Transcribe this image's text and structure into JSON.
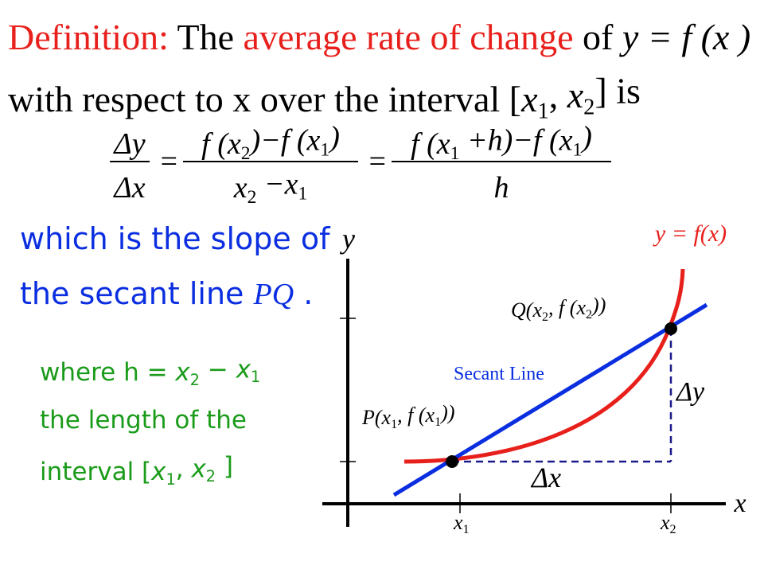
{
  "definition": {
    "label": "Definition:",
    "text1": "The",
    "highlight": "average rate of change",
    "text2": "of",
    "function": "y = f (x )",
    "line2": [
      "with respect to ",
      "x",
      " over the interval [",
      {
        "base": "x",
        "sub": "1"
      },
      ", ",
      {
        "base": "x",
        "sub": "2"
      },
      "] is"
    ]
  },
  "formula": {
    "frac1": {
      "num": [
        "Δy"
      ],
      "den": [
        "Δx"
      ]
    },
    "equals": [
      "=",
      "="
    ],
    "frac2": {
      "num": [
        "f (",
        {
          "base": "x",
          "sub": "2"
        },
        ")−f (",
        {
          "base": "x",
          "sub": "1"
        },
        ")"
      ],
      "den": [
        {
          "base": "x",
          "sub": "2"
        },
        " −",
        {
          "base": "x",
          "sub": "1"
        }
      ]
    },
    "frac3": {
      "num": [
        "f (",
        {
          "base": "x",
          "sub": "1"
        },
        " +h)−f (",
        {
          "base": "x",
          "sub": "1"
        },
        ")"
      ],
      "den": [
        "h"
      ]
    }
  },
  "slope": {
    "line1": "which is the slope of",
    "line2": [
      "the secant line ",
      "PQ",
      " ."
    ]
  },
  "where": {
    "line1": [
      "where ",
      "h",
      " = ",
      {
        "base": "x",
        "sub": "2"
      },
      " − ",
      {
        "base": "x",
        "sub": "1"
      }
    ],
    "line2": "the length of the",
    "line3": [
      "interval [",
      {
        "base": "x",
        "sub": "1"
      },
      ", ",
      {
        "base": "x",
        "sub": "2"
      },
      " ]"
    ]
  },
  "graph": {
    "curve_label": "y = f(x)",
    "y_axis": "y",
    "x_axis": "x",
    "q_label": [
      "Q(",
      {
        "base": "x",
        "sub": "2"
      },
      ", f (",
      {
        "base": "x",
        "sub": "2"
      },
      "))"
    ],
    "p_label": [
      "P(",
      {
        "base": "x",
        "sub": "1"
      },
      ", f (",
      {
        "base": "x",
        "sub": "1"
      },
      "))"
    ],
    "secant_label": "Secant Line",
    "delta_y": "Δy",
    "delta_x": "Δx",
    "x1": {
      "base": "x",
      "sub": "1"
    },
    "x2": {
      "base": "x",
      "sub": "2"
    }
  }
}
